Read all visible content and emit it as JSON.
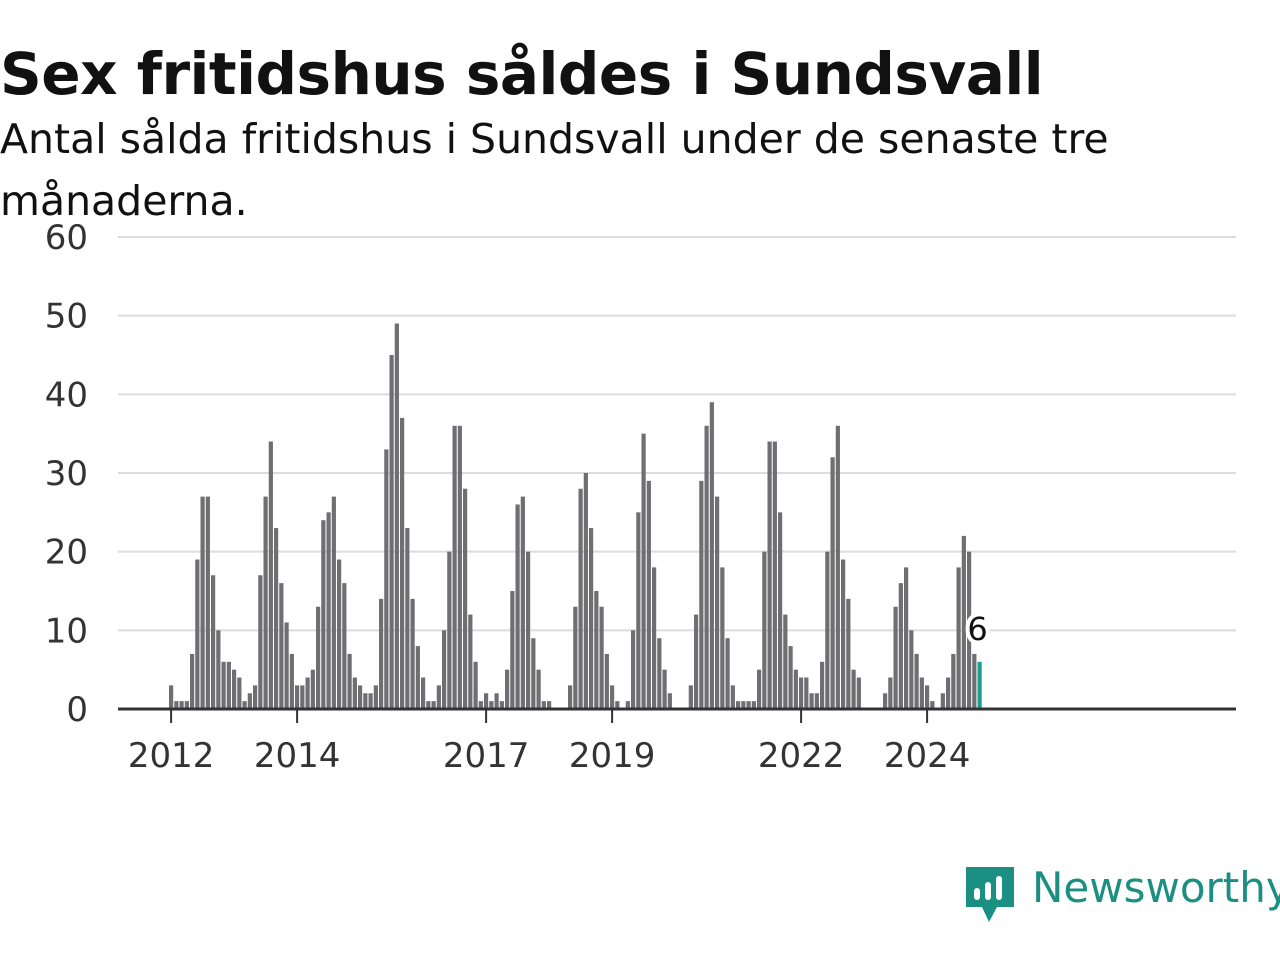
{
  "title": "Sex fritidshus såldes i Sundsvall",
  "subtitle": "Antal sålda fritidshus i Sundsvall under de senaste tre månaderna.",
  "brand": {
    "name": "Newsworthy",
    "icon": "newsworthy-logo-icon",
    "color": "#1a8f82"
  },
  "chart_data": {
    "type": "bar",
    "title": "Sex fritidshus såldes i Sundsvall",
    "subtitle": "Antal sålda fritidshus i Sundsvall under de senaste tre månaderna.",
    "xlabel": "",
    "ylabel": "",
    "ylim": [
      0,
      60
    ],
    "yticks": [
      0,
      10,
      20,
      30,
      40,
      50,
      60
    ],
    "ytick_labels": [
      "0",
      "10",
      "20",
      "30",
      "40",
      "50",
      "60"
    ],
    "xticks": [
      "2012",
      "2014",
      "2017",
      "2019",
      "2022",
      "2024"
    ],
    "grid": true,
    "legend": "none",
    "start": "2011-05",
    "frequency": "monthly",
    "bar_color": "#6e6e73",
    "highlight_color": "#1a9e8f",
    "values": [
      null,
      null,
      null,
      null,
      null,
      null,
      null,
      null,
      3,
      1,
      1,
      1,
      7,
      19,
      27,
      27,
      17,
      10,
      6,
      6,
      5,
      4,
      1,
      2,
      3,
      17,
      27,
      34,
      23,
      16,
      11,
      7,
      3,
      3,
      4,
      5,
      13,
      24,
      25,
      27,
      19,
      16,
      7,
      4,
      3,
      2,
      2,
      3,
      14,
      33,
      45,
      49,
      37,
      23,
      14,
      8,
      4,
      1,
      1,
      3,
      10,
      20,
      36,
      36,
      28,
      12,
      6,
      1,
      2,
      1,
      2,
      1,
      5,
      15,
      26,
      27,
      20,
      9,
      5,
      1,
      1,
      0,
      0,
      0,
      3,
      13,
      28,
      30,
      23,
      15,
      13,
      7,
      3,
      1,
      0,
      1,
      10,
      25,
      35,
      29,
      18,
      9,
      5,
      2,
      0,
      0,
      0,
      3,
      12,
      29,
      36,
      39,
      27,
      18,
      9,
      3,
      1,
      1,
      1,
      1,
      5,
      20,
      34,
      34,
      25,
      12,
      8,
      5,
      4,
      4,
      2,
      2,
      6,
      20,
      32,
      36,
      19,
      14,
      5,
      4,
      0,
      0,
      0,
      0,
      2,
      4,
      13,
      16,
      18,
      10,
      7,
      4,
      3,
      1,
      0,
      2,
      4,
      7,
      18,
      22,
      20,
      7,
      6
    ],
    "annotations": [
      {
        "label": "6",
        "value": 6,
        "index": "last"
      }
    ]
  }
}
